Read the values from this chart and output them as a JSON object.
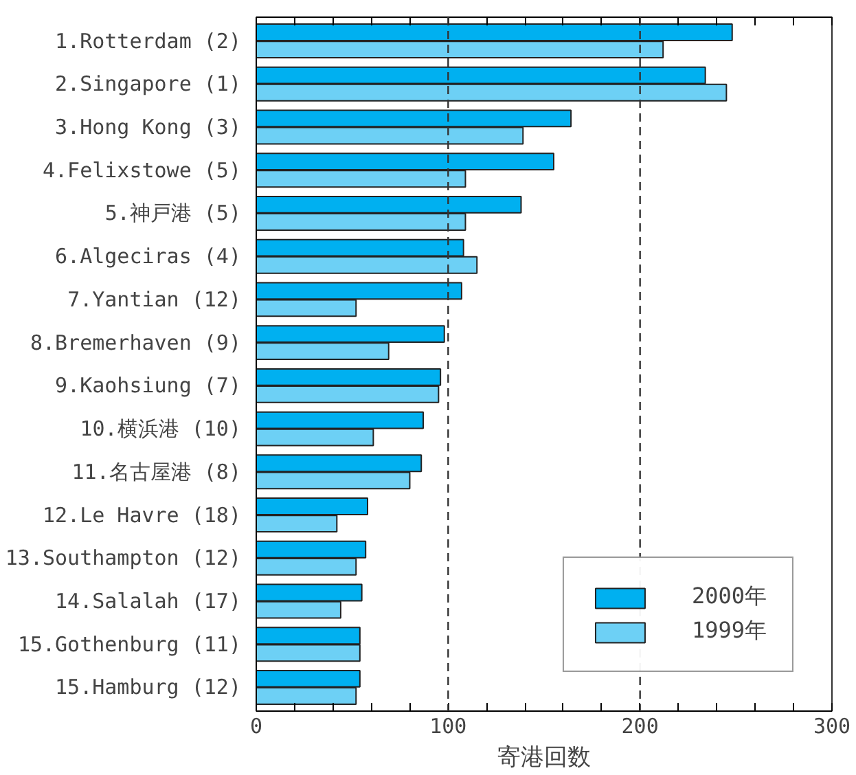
{
  "chart_data": {
    "type": "bar",
    "orientation": "horizontal",
    "xlabel": "寄港回数",
    "categories": [
      "1.Rotterdam (2)",
      "2.Singapore (1)",
      "3.Hong Kong (3)",
      "4.Felixstowe (5)",
      "5.神戸港 (5)",
      "6.Algeciras (4)",
      "7.Yantian (12)",
      "8.Bremerhaven (9)",
      "9.Kaohsiung (7)",
      "10.横浜港 (10)",
      "11.名古屋港 (8)",
      "12.Le Havre (18)",
      "13.Southampton (12)",
      "14.Salalah (17)",
      "15.Gothenburg (11)",
      "15.Hamburg (12)"
    ],
    "series": [
      {
        "name": "2000年",
        "color": "#00b0f0",
        "values": [
          248,
          234,
          164,
          155,
          138,
          108,
          107,
          98,
          96,
          87,
          86,
          58,
          57,
          55,
          54,
          54
        ]
      },
      {
        "name": "1999年",
        "color": "#6dd0f5",
        "values": [
          212,
          245,
          139,
          109,
          109,
          115,
          52,
          69,
          95,
          61,
          80,
          42,
          52,
          44,
          54,
          52
        ]
      }
    ],
    "xlim": [
      0,
      300
    ],
    "xticks": [
      0,
      {
        "value": 20,
        "label": null
      },
      {
        "value": 40,
        "label": null
      },
      {
        "value": 60,
        "label": null
      },
      {
        "value": 80,
        "label": null
      },
      100,
      {
        "value": 120,
        "label": null
      },
      {
        "value": 140,
        "label": null
      },
      {
        "value": 160,
        "label": null
      },
      {
        "value": 180,
        "label": null
      },
      200,
      {
        "value": 220,
        "label": null
      },
      {
        "value": 240,
        "label": null
      },
      {
        "value": 260,
        "label": null
      },
      {
        "value": 280,
        "label": null
      },
      300
    ],
    "ref_lines": [
      {
        "axis": "x",
        "value": 100,
        "line_style": "dashed",
        "color": "#333333"
      },
      {
        "axis": "x",
        "value": 200,
        "line_style": "dashed",
        "color": "#333333"
      }
    ],
    "grid": false,
    "legend": "bottom right"
  }
}
